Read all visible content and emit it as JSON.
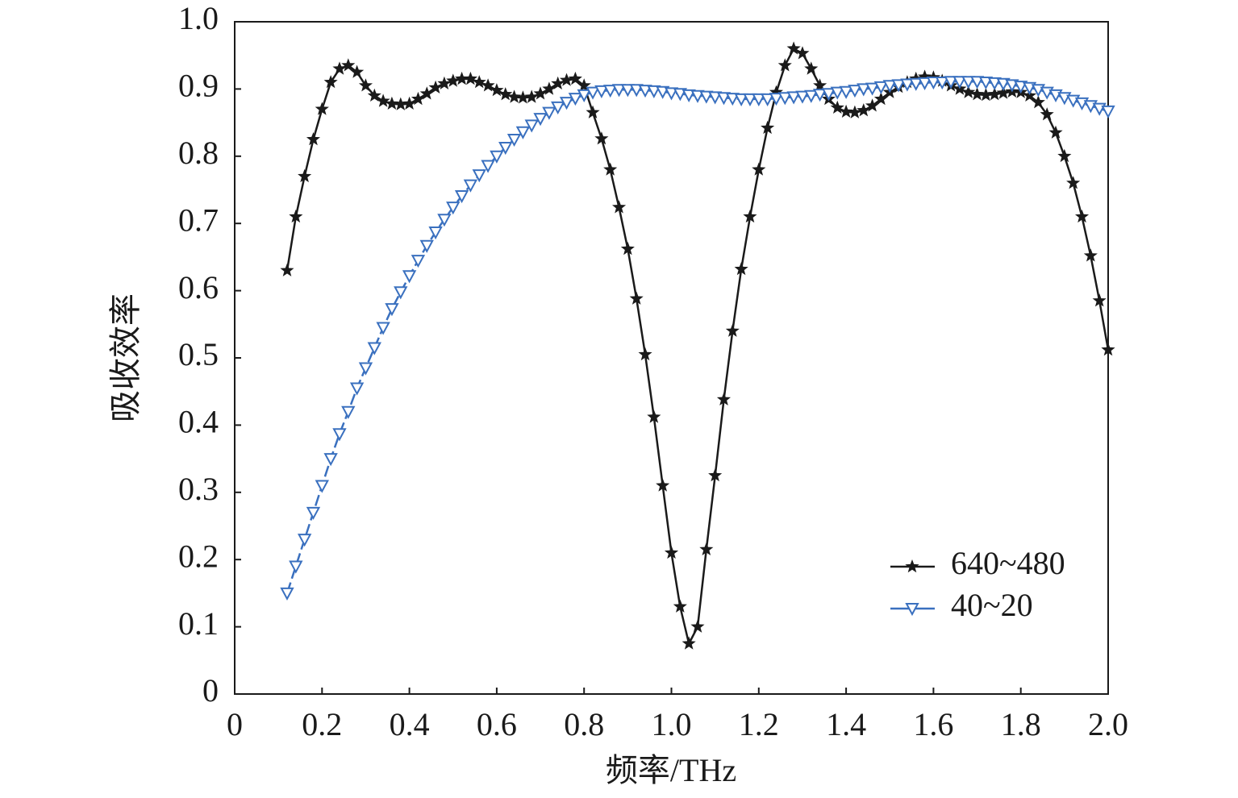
{
  "chart_data": {
    "type": "line",
    "xlabel": "频率/THz",
    "ylabel": "吸收效率",
    "x": [
      0.12,
      0.14,
      0.16,
      0.18,
      0.2,
      0.22,
      0.24,
      0.26,
      0.28,
      0.3,
      0.32,
      0.34,
      0.36,
      0.38,
      0.4,
      0.42,
      0.44,
      0.46,
      0.48,
      0.5,
      0.52,
      0.54,
      0.56,
      0.58,
      0.6,
      0.62,
      0.64,
      0.66,
      0.68,
      0.7,
      0.72,
      0.74,
      0.76,
      0.78,
      0.8,
      0.82,
      0.84,
      0.86,
      0.88,
      0.9,
      0.92,
      0.94,
      0.96,
      0.98,
      1.0,
      1.02,
      1.04,
      1.06,
      1.08,
      1.1,
      1.12,
      1.14,
      1.16,
      1.18,
      1.2,
      1.22,
      1.24,
      1.26,
      1.28,
      1.3,
      1.32,
      1.34,
      1.36,
      1.38,
      1.4,
      1.42,
      1.44,
      1.46,
      1.48,
      1.5,
      1.52,
      1.54,
      1.56,
      1.58,
      1.6,
      1.62,
      1.64,
      1.66,
      1.68,
      1.7,
      1.72,
      1.74,
      1.76,
      1.78,
      1.8,
      1.82,
      1.84,
      1.86,
      1.88,
      1.9,
      1.92,
      1.94,
      1.96,
      1.98,
      2.0
    ],
    "series": [
      {
        "name": "640~480",
        "color": "#1a1a1a",
        "marker": "star",
        "values": [
          0.63,
          0.71,
          0.77,
          0.825,
          0.87,
          0.91,
          0.93,
          0.935,
          0.925,
          0.905,
          0.89,
          0.882,
          0.878,
          0.877,
          0.878,
          0.885,
          0.893,
          0.902,
          0.908,
          0.912,
          0.915,
          0.915,
          0.91,
          0.905,
          0.898,
          0.892,
          0.888,
          0.887,
          0.888,
          0.893,
          0.9,
          0.908,
          0.913,
          0.915,
          0.905,
          0.865,
          0.826,
          0.78,
          0.724,
          0.662,
          0.588,
          0.505,
          0.412,
          0.31,
          0.21,
          0.13,
          0.075,
          0.1,
          0.215,
          0.325,
          0.438,
          0.54,
          0.632,
          0.71,
          0.78,
          0.842,
          0.895,
          0.935,
          0.96,
          0.953,
          0.93,
          0.905,
          0.885,
          0.872,
          0.866,
          0.865,
          0.868,
          0.875,
          0.885,
          0.895,
          0.903,
          0.91,
          0.915,
          0.918,
          0.917,
          0.912,
          0.905,
          0.9,
          0.895,
          0.892,
          0.891,
          0.892,
          0.894,
          0.896,
          0.895,
          0.89,
          0.88,
          0.862,
          0.835,
          0.8,
          0.76,
          0.71,
          0.652,
          0.585,
          0.512
        ]
      },
      {
        "name": "40~20",
        "color": "#3a70bf",
        "marker": "triangle-down",
        "values": [
          0.15,
          0.19,
          0.23,
          0.27,
          0.31,
          0.35,
          0.387,
          0.42,
          0.455,
          0.485,
          0.515,
          0.545,
          0.573,
          0.598,
          0.622,
          0.645,
          0.667,
          0.687,
          0.706,
          0.724,
          0.741,
          0.757,
          0.772,
          0.786,
          0.8,
          0.813,
          0.825,
          0.836,
          0.846,
          0.856,
          0.865,
          0.873,
          0.88,
          0.886,
          0.891,
          0.895,
          0.897,
          0.898,
          0.899,
          0.899,
          0.899,
          0.898,
          0.897,
          0.896,
          0.894,
          0.893,
          0.891,
          0.89,
          0.889,
          0.888,
          0.887,
          0.886,
          0.885,
          0.885,
          0.885,
          0.885,
          0.886,
          0.887,
          0.888,
          0.889,
          0.89,
          0.892,
          0.893,
          0.895,
          0.896,
          0.898,
          0.9,
          0.901,
          0.903,
          0.905,
          0.906,
          0.907,
          0.908,
          0.909,
          0.91,
          0.91,
          0.911,
          0.911,
          0.911,
          0.911,
          0.91,
          0.909,
          0.908,
          0.906,
          0.904,
          0.902,
          0.899,
          0.895,
          0.891,
          0.887,
          0.883,
          0.879,
          0.875,
          0.871,
          0.867
        ]
      }
    ],
    "xlim": [
      0,
      2.0
    ],
    "ylim": [
      0,
      1.0
    ],
    "xticks": [
      0,
      0.2,
      0.4,
      0.6,
      0.8,
      {
        "value": 1.0,
        "label": "1.0"
      },
      1.2,
      1.4,
      1.6,
      1.8,
      {
        "value": 2.0,
        "label": "2.0"
      }
    ],
    "yticks": [
      0,
      0.1,
      0.2,
      0.3,
      0.4,
      0.5,
      0.6,
      0.7,
      0.8,
      0.9,
      {
        "value": 1.0,
        "label": "1.0"
      }
    ],
    "legend": "lower right",
    "grid": false
  }
}
